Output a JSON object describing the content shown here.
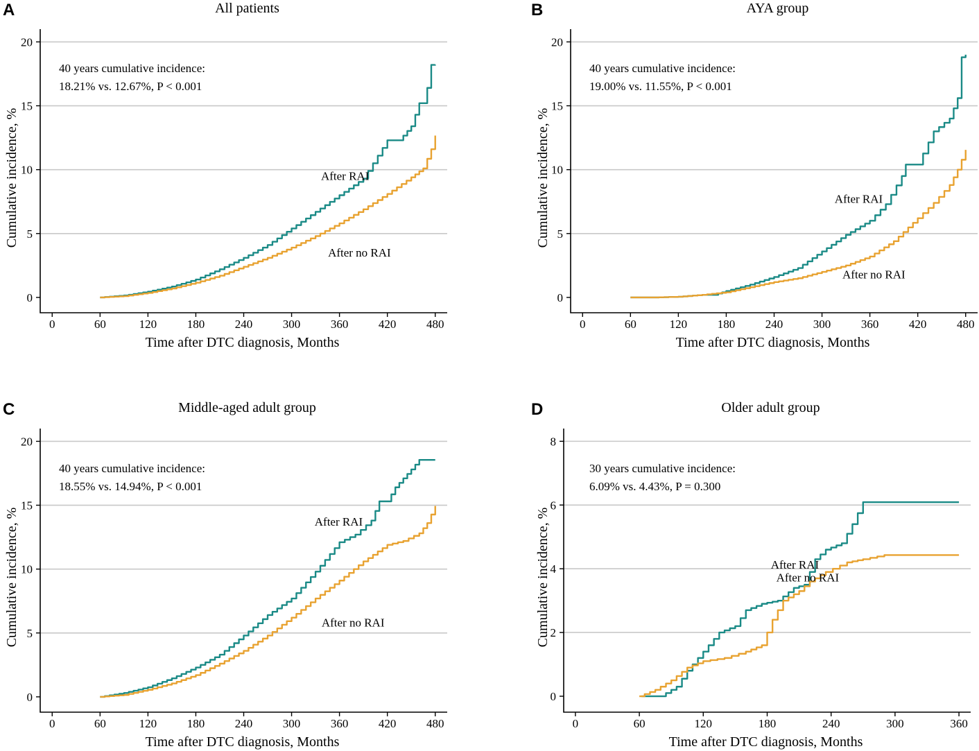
{
  "figure": {
    "colors": {
      "after_rai": "#1a8a86",
      "after_no_rai": "#e8a230"
    }
  },
  "chart_data": [
    {
      "type": "line",
      "panel_letter": "A",
      "title": "All patients",
      "xlabel": "Time after DTC diagnosis, Months",
      "ylabel": "Cumulative incidence, %",
      "xlim": [
        -15,
        495
      ],
      "ylim": [
        -1.2,
        21
      ],
      "xticks": [
        0,
        60,
        120,
        180,
        240,
        300,
        360,
        420,
        480
      ],
      "yticks": [
        0,
        5,
        10,
        15,
        20
      ],
      "grid": true,
      "annotation": [
        "40 years cumulative incidence:",
        "18.21% vs. 12.67%, P < 0.001"
      ],
      "series": [
        {
          "name": "After RAI",
          "label_at": [
            367,
            9.2
          ],
          "x": [
            60,
            90,
            120,
            150,
            180,
            210,
            240,
            270,
            300,
            330,
            360,
            390,
            420,
            435,
            450,
            460,
            465,
            470,
            475,
            480
          ],
          "y": [
            0,
            0.15,
            0.45,
            0.85,
            1.4,
            2.2,
            3.1,
            4.1,
            5.4,
            6.7,
            8.0,
            9.3,
            12.3,
            12.3,
            13.4,
            15.2,
            15.2,
            16.4,
            18.2,
            18.21
          ]
        },
        {
          "name": "After no RAI",
          "label_at": [
            385,
            3.2
          ],
          "x": [
            60,
            90,
            120,
            150,
            180,
            210,
            240,
            270,
            300,
            330,
            360,
            390,
            420,
            450,
            465,
            475,
            480
          ],
          "y": [
            0,
            0.1,
            0.35,
            0.7,
            1.15,
            1.7,
            2.4,
            3.1,
            3.9,
            4.8,
            5.8,
            6.9,
            8.1,
            9.4,
            10.1,
            11.6,
            12.67
          ]
        }
      ]
    },
    {
      "type": "line",
      "panel_letter": "B",
      "title": "AYA group",
      "xlabel": "Time after DTC diagnosis, Months",
      "ylabel": "Cumulative incidence, %",
      "xlim": [
        -15,
        495
      ],
      "ylim": [
        -1.2,
        21
      ],
      "xticks": [
        0,
        60,
        120,
        180,
        240,
        300,
        360,
        420,
        480
      ],
      "yticks": [
        0,
        5,
        10,
        15,
        20
      ],
      "grid": true,
      "annotation": [
        "40 years cumulative incidence:",
        "19.00% vs. 11.55%, P < 0.001"
      ],
      "series": [
        {
          "name": "After RAI",
          "label_at": [
            346,
            7.4
          ],
          "x": [
            60,
            90,
            120,
            150,
            165,
            180,
            210,
            240,
            270,
            300,
            330,
            360,
            380,
            400,
            405,
            420,
            440,
            460,
            470,
            475,
            480
          ],
          "y": [
            0,
            0,
            0.05,
            0.2,
            0.2,
            0.5,
            1.0,
            1.6,
            2.3,
            3.6,
            4.9,
            6.0,
            7.3,
            9.5,
            10.4,
            10.4,
            13.0,
            14.0,
            15.6,
            18.8,
            19.0
          ]
        },
        {
          "name": "After no RAI",
          "label_at": [
            365,
            1.5
          ],
          "x": [
            60,
            90,
            120,
            150,
            180,
            210,
            240,
            270,
            300,
            330,
            360,
            390,
            420,
            440,
            460,
            470,
            480
          ],
          "y": [
            0,
            0,
            0.05,
            0.2,
            0.4,
            0.8,
            1.2,
            1.5,
            2.0,
            2.5,
            3.2,
            4.4,
            6.2,
            7.4,
            8.8,
            10.0,
            11.55
          ]
        }
      ]
    },
    {
      "type": "line",
      "panel_letter": "C",
      "title": "Middle-aged adult group",
      "xlabel": "Time after DTC diagnosis, Months",
      "ylabel": "Cumulative incidence, %",
      "xlim": [
        -15,
        495
      ],
      "ylim": [
        -1.2,
        21
      ],
      "xticks": [
        0,
        60,
        120,
        180,
        240,
        300,
        360,
        420,
        480
      ],
      "yticks": [
        0,
        5,
        10,
        15,
        20
      ],
      "grid": true,
      "annotation": [
        "40 years cumulative incidence:",
        "18.55% vs. 14.94%, P < 0.001"
      ],
      "series": [
        {
          "name": "After RAI",
          "label_at": [
            359,
            13.4
          ],
          "x": [
            60,
            90,
            120,
            150,
            180,
            210,
            240,
            270,
            300,
            330,
            360,
            380,
            400,
            410,
            420,
            430,
            440,
            450,
            460,
            465,
            480
          ],
          "y": [
            0,
            0.3,
            0.75,
            1.45,
            2.3,
            3.3,
            4.8,
            6.4,
            7.7,
            9.8,
            12.1,
            12.7,
            13.8,
            15.3,
            15.3,
            16.4,
            17.1,
            17.8,
            18.55,
            18.55,
            18.55
          ]
        },
        {
          "name": "After no RAI",
          "label_at": [
            377,
            5.5
          ],
          "x": [
            60,
            90,
            120,
            150,
            180,
            210,
            240,
            270,
            300,
            330,
            360,
            390,
            420,
            440,
            460,
            470,
            480
          ],
          "y": [
            0,
            0.15,
            0.55,
            1.05,
            1.7,
            2.6,
            3.6,
            4.8,
            6.2,
            7.7,
            9.1,
            10.6,
            11.9,
            12.2,
            12.8,
            13.6,
            14.94
          ]
        }
      ]
    },
    {
      "type": "line",
      "panel_letter": "D",
      "title": "Older adult group",
      "xlabel": "Time after DTC diagnosis, Months",
      "ylabel": "Cumulative incidence, %",
      "xlim": [
        -11,
        371
      ],
      "ylim": [
        -0.5,
        8.4
      ],
      "xticks": [
        0,
        60,
        120,
        180,
        240,
        300,
        360
      ],
      "yticks": [
        0,
        2,
        4,
        6,
        8
      ],
      "grid": true,
      "annotation": [
        "30 years cumulative incidence:",
        "6.09% vs. 4.43%, P = 0.300"
      ],
      "series": [
        {
          "name": "After RAI",
          "label_at": [
            206,
            4.0
          ],
          "x": [
            62,
            80,
            95,
            105,
            115,
            125,
            135,
            150,
            160,
            175,
            190,
            205,
            215,
            225,
            235,
            250,
            260,
            270,
            285,
            330,
            360
          ],
          "y": [
            0,
            0,
            0.3,
            0.8,
            1.2,
            1.6,
            2.0,
            2.2,
            2.7,
            2.9,
            3.0,
            3.4,
            3.5,
            4.3,
            4.6,
            4.8,
            5.4,
            6.09,
            6.09,
            6.09,
            6.09
          ]
        },
        {
          "name": "After no RAI",
          "label_at": [
            218,
            3.6
          ],
          "x": [
            60,
            75,
            90,
            105,
            120,
            140,
            160,
            175,
            185,
            195,
            210,
            220,
            235,
            255,
            270,
            290,
            330,
            360
          ],
          "y": [
            0,
            0.2,
            0.5,
            0.9,
            1.1,
            1.2,
            1.4,
            1.6,
            2.4,
            3.0,
            3.3,
            3.6,
            3.9,
            4.2,
            4.3,
            4.43,
            4.43,
            4.43
          ]
        }
      ]
    }
  ]
}
